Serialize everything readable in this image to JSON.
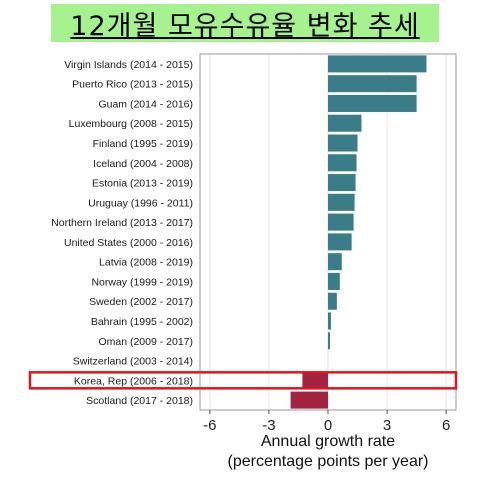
{
  "page_title": "12개월 모유수유율 변화 추세",
  "chart_data": {
    "type": "bar",
    "orientation": "horizontal",
    "categories": [
      "Virgin Islands (2014 - 2015)",
      "Puerto Rico (2013 - 2015)",
      "Guam (2014 - 2016)",
      "Luxembourg (2008 - 2015)",
      "Finland (1995 - 2019)",
      "Iceland (2004 - 2008)",
      "Estonia (2013 - 2019)",
      "Uruguay (1996 - 2011)",
      "Northern Ireland (2013 - 2017)",
      "United States (2000 - 2016)",
      "Latvia (2008 - 2019)",
      "Norway (1999 - 2019)",
      "Sweden (2002 - 2017)",
      "Bahrain (1995 - 2002)",
      "Oman (2009 - 2017)",
      "Switzerland (2003 - 2014)",
      "Korea, Rep (2006 - 2018)",
      "Scotland (2017 - 2018)"
    ],
    "values": [
      5.0,
      4.5,
      4.5,
      1.7,
      1.5,
      1.45,
      1.4,
      1.35,
      1.3,
      1.2,
      0.7,
      0.6,
      0.45,
      0.15,
      0.1,
      0.0,
      -1.3,
      -1.9
    ],
    "xlabel": "Annual growth rate\n(percentage points per year)",
    "ylabel": "",
    "xlim": [
      -6.5,
      6.5
    ],
    "xticks": [
      -6,
      -3,
      0,
      3,
      6
    ],
    "grid": "vertical",
    "colors": {
      "positive": "#3a7d89",
      "negative": "#a2233f",
      "highlight": "#e0141e"
    },
    "highlight_category": "Korea, Rep (2006 - 2018)"
  }
}
